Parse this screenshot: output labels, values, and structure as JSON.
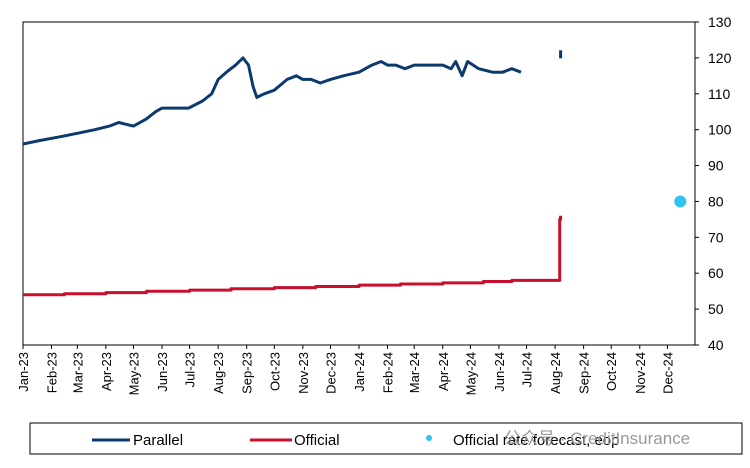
{
  "chart_data": {
    "type": "line",
    "title": "",
    "xlabel": "",
    "ylabel": "",
    "ylim": [
      40,
      130
    ],
    "yticks": [
      40,
      50,
      60,
      70,
      80,
      90,
      100,
      110,
      120,
      130
    ],
    "y_axis_side": "right",
    "xlim": [
      "2023-01-01",
      "2024-12-31"
    ],
    "xtick_labels": [
      "Jan-23",
      "Feb-23",
      "Mar-23",
      "Apr-23",
      "May-23",
      "Jun-23",
      "Jul-23",
      "Aug-23",
      "Sep-23",
      "Oct-23",
      "Nov-23",
      "Dec-23",
      "Jan-24",
      "Feb-24",
      "Mar-24",
      "Apr-24",
      "May-24",
      "Jun-24",
      "Jul-24",
      "Aug-24",
      "Sep-24",
      "Oct-24",
      "Nov-24",
      "Dec-24"
    ],
    "grid": false,
    "legend_position": "bottom",
    "series": [
      {
        "name": "Parallel",
        "color": "#0b3a6e",
        "style": "line",
        "x": [
          "2023-01-01",
          "2023-01-20",
          "2023-02-10",
          "2023-03-01",
          "2023-03-20",
          "2023-04-05",
          "2023-04-15",
          "2023-05-01",
          "2023-05-15",
          "2023-05-25",
          "2023-06-01",
          "2023-06-15",
          "2023-06-30",
          "2023-07-15",
          "2023-07-25",
          "2023-08-01",
          "2023-08-10",
          "2023-08-20",
          "2023-08-28",
          "2023-09-03",
          "2023-09-08",
          "2023-09-12",
          "2023-09-20",
          "2023-10-01",
          "2023-10-15",
          "2023-10-25",
          "2023-11-01",
          "2023-11-10",
          "2023-11-20",
          "2023-12-01",
          "2023-12-15",
          "2024-01-01",
          "2024-01-15",
          "2024-01-25",
          "2024-02-01",
          "2024-02-10",
          "2024-02-20",
          "2024-03-01",
          "2024-03-15",
          "2024-04-01",
          "2024-04-10",
          "2024-04-15",
          "2024-04-22",
          "2024-04-28",
          "2024-05-10",
          "2024-05-25",
          "2024-06-05",
          "2024-06-15",
          "2024-06-25"
        ],
        "values": [
          96,
          97,
          98,
          99,
          100,
          101,
          102,
          101,
          103,
          105,
          106,
          106,
          106,
          108,
          110,
          114,
          116,
          118,
          120,
          118,
          112,
          109,
          110,
          111,
          114,
          115,
          114,
          114,
          113,
          114,
          115,
          116,
          118,
          119,
          118,
          118,
          117,
          118,
          118,
          118,
          117,
          119,
          115,
          119,
          117,
          116,
          116,
          117,
          116
        ]
      },
      {
        "name": "Official",
        "color": "#c8102e",
        "style": "step-line",
        "x": [
          "2023-01-01",
          "2023-02-15",
          "2023-04-01",
          "2023-05-15",
          "2023-07-01",
          "2023-08-15",
          "2023-10-01",
          "2023-11-15",
          "2024-01-01",
          "2024-02-15",
          "2024-04-01",
          "2024-05-15",
          "2024-06-15",
          "2024-07-15",
          "2024-08-05",
          "2024-08-06",
          "2024-08-07"
        ],
        "values": [
          54,
          54.3,
          54.6,
          55,
          55.3,
          55.7,
          56,
          56.3,
          56.7,
          57,
          57.3,
          57.7,
          58,
          58,
          58,
          75,
          76
        ]
      },
      {
        "name": "",
        "color": "#0b3a6e",
        "style": "point",
        "x": [
          "2024-08-07"
        ],
        "values": [
          121
        ]
      },
      {
        "name": "Official rate forecast, eop",
        "color": "#2ec4f1",
        "style": "marker",
        "x": [
          "2024-12-15"
        ],
        "values": [
          80
        ]
      }
    ]
  },
  "legend": {
    "items": [
      {
        "label": "Parallel",
        "color": "#0b3a6e",
        "symbol": "line"
      },
      {
        "label": "Official",
        "color": "#c8102e",
        "symbol": "line"
      },
      {
        "label": "Official rate forecast, eop",
        "color": "#2ec4f1",
        "symbol": "dot"
      }
    ]
  },
  "watermark": {
    "text": "公众号 · CreditInsurance"
  }
}
